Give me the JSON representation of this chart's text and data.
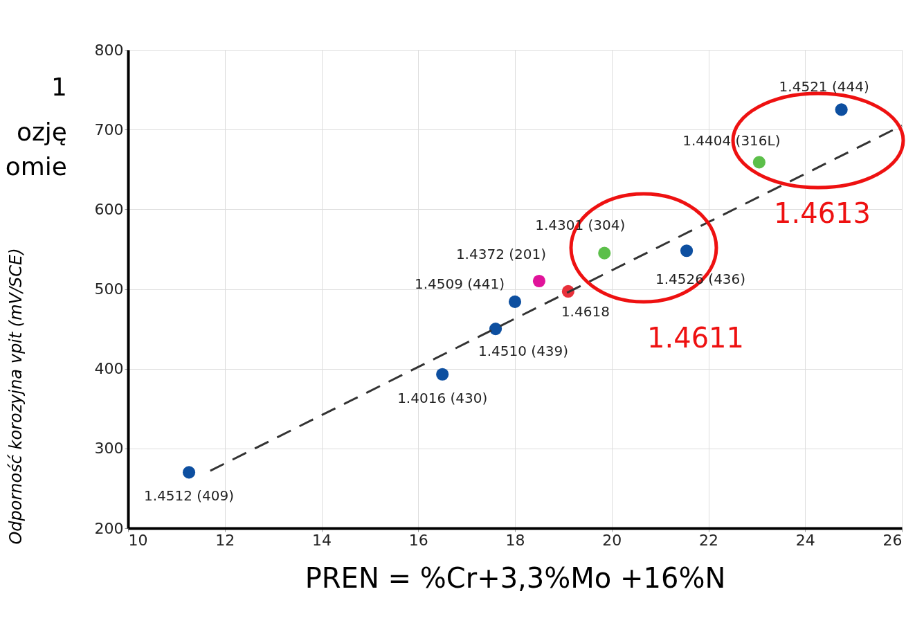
{
  "chart_data": {
    "type": "scatter",
    "xlabel": "PREN = %Cr+3,3%Mo +16%N",
    "ylabel": "Odporność korozyjna vpit (mV/SCE)",
    "xlim": [
      10,
      26
    ],
    "xticks": [
      10,
      12,
      14,
      16,
      18,
      20,
      22,
      24,
      26
    ],
    "ylim": [
      200,
      800
    ],
    "yticks": [
      200,
      300,
      400,
      500,
      600,
      700,
      800
    ],
    "grid": true,
    "marker": "circle",
    "series": [
      {
        "x": [
          11.26,
          16.5,
          17.6,
          18.0,
          18.5,
          19.1,
          19.85,
          21.55,
          23.05,
          24.75
        ],
        "values": [
          270,
          393,
          450,
          484,
          510,
          497,
          545,
          548,
          659,
          725
        ],
        "colors": [
          "#0d4fa0",
          "#0d4fa0",
          "#0d4fa0",
          "#0d4fa0",
          "#e0139a",
          "#e8303a",
          "#5cbf4a",
          "#0d4fa0",
          "#5cbf4a",
          "#0d4fa0"
        ]
      },
      {
        "type": "line",
        "x": [
          11.7,
          26
        ],
        "values": [
          272,
          705
        ],
        "color": "#333333",
        "line_style": "dashed",
        "marker": "none"
      }
    ],
    "annotations": [
      "1",
      "ozję",
      "omie",
      "1.4611",
      "1.4613",
      {
        "text": "1.4512 (409)",
        "x": 11.26,
        "y": 270
      },
      {
        "text": "1.4016 (430)",
        "x": 16.5,
        "y": 393
      },
      {
        "text": "1.4510 (439)",
        "x": 17.6,
        "y": 450
      },
      {
        "text": "1.4509 (441)",
        "x": 18.0,
        "y": 484
      },
      {
        "text": "1.4372 (201)",
        "x": 18.5,
        "y": 510
      },
      {
        "text": "1.4618",
        "x": 19.1,
        "y": 497
      },
      {
        "text": "1.4301 (304)",
        "x": 19.85,
        "y": 545
      },
      {
        "text": "1.4526 (436)",
        "x": 21.55,
        "y": 548
      },
      {
        "text": "1.4404 (316L)",
        "x": 23.05,
        "y": 659
      },
      {
        "text": "1.4521 (444)",
        "x": 24.75,
        "y": 725
      }
    ]
  }
}
